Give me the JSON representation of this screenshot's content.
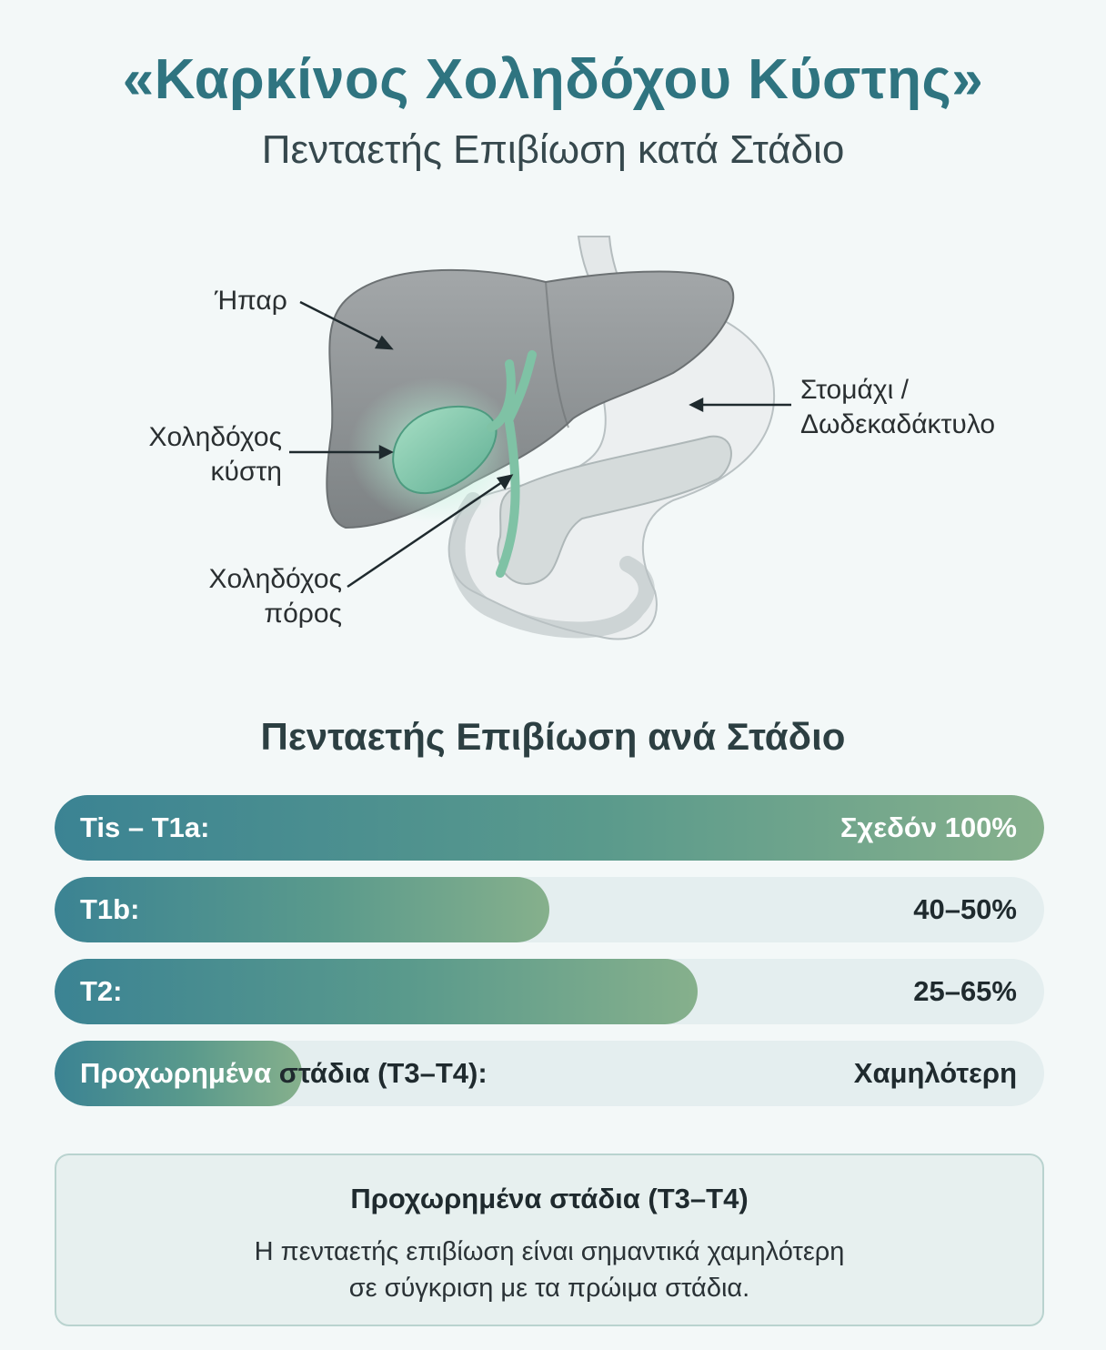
{
  "header": {
    "title": "«Καρκίνος Χοληδόχου Κύστης»",
    "subtitle": "Πενταετής Επιβίωση κατά Στάδιο"
  },
  "anatomy": {
    "labels": {
      "liver": "Ήπαρ",
      "gallbladder_line1": "Χοληδόχος",
      "gallbladder_line2": "κύστη",
      "duct_line1": "Χοληδόχος",
      "duct_line2": "πόρος",
      "stomach_line1": "Στομάχι /",
      "stomach_line2": "Δωδεκαδάκτυλο"
    },
    "colors": {
      "liver": "#8f9496",
      "gallbladder": "#7fc7a9",
      "glow": "#9ee0c2",
      "stomach": "#e7ebec",
      "pancreas": "#cfd6d6"
    }
  },
  "chart_data": {
    "type": "bar",
    "title": "Πενταετής Επιβίωση ανά Στάδιο",
    "orientation": "horizontal",
    "categories": [
      "Tis – T1a:",
      "T1b:",
      "T2:",
      "Προχωρημένα στάδια (T3–T4):"
    ],
    "value_labels": [
      "Σχεδόν 100%",
      "40–50%",
      "25–65%",
      "Χαμηλότερη"
    ],
    "ranges": [
      [
        100,
        100
      ],
      [
        40,
        50
      ],
      [
        25,
        65
      ],
      [
        null,
        25
      ]
    ],
    "xlim": [
      0,
      100
    ]
  },
  "bars": [
    {
      "label_main": "Tis – T1a:",
      "label_rest": "",
      "value": "Σχεδόν 100%"
    },
    {
      "label_main": "T1b:",
      "label_rest": "",
      "value": "40–50%"
    },
    {
      "label_main": "T2:",
      "label_rest": "",
      "value": "25–65%"
    },
    {
      "label_main": "Προχωρημένα",
      "label_rest": " στάδια (T3–T4):",
      "value": "Χαμηλότερη"
    }
  ],
  "note": {
    "title": "Προχωρημένα στάδια (T3–T4)",
    "body_line1": "Η πενταετής επιβίωση είναι σημαντικά χαμηλότερη",
    "body_line2": "σε σύγκριση με τα πρώιμα στάδια."
  }
}
